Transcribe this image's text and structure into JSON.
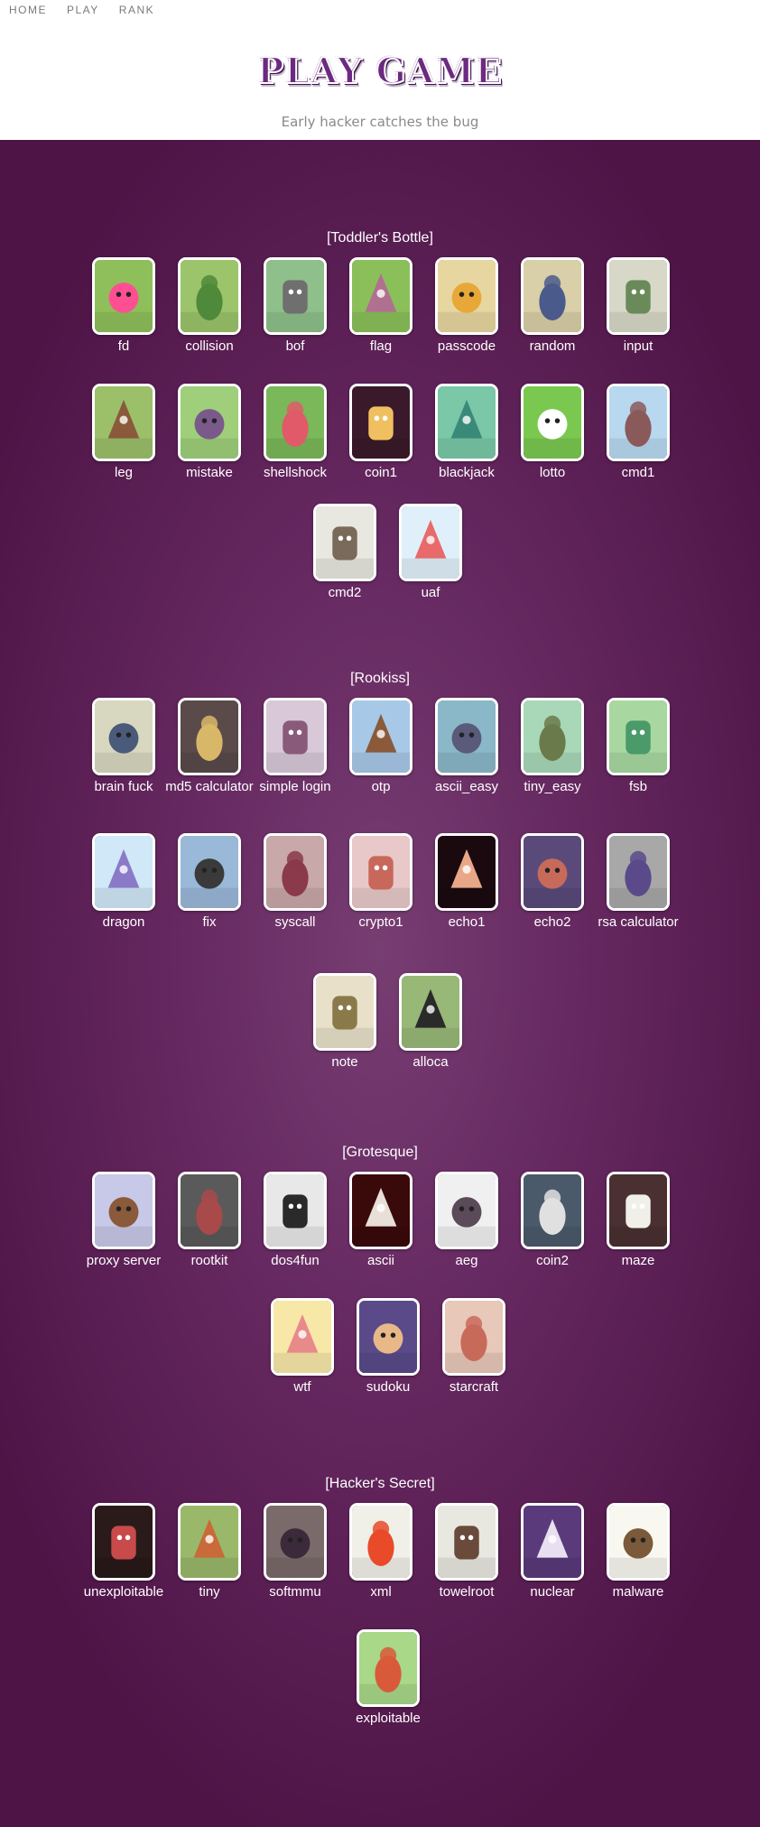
{
  "nav": {
    "items": [
      {
        "label": "HOME"
      },
      {
        "label": "PLAY"
      },
      {
        "label": "RANK"
      }
    ]
  },
  "header": {
    "logo_text": "PLAY GAME",
    "subtitle": "Early hacker catches the bug"
  },
  "categories": [
    {
      "title": "[Toddler's Bottle]",
      "games": [
        {
          "label": "fd",
          "color": "#8fbf5a",
          "accent": "#ff4f93"
        },
        {
          "label": "collision",
          "color": "#9cc46a",
          "accent": "#4f8a3a"
        },
        {
          "label": "bof",
          "color": "#8fbf8a",
          "accent": "#6f6f6f"
        },
        {
          "label": "flag",
          "color": "#8abf5a",
          "accent": "#b07090"
        },
        {
          "label": "passcode",
          "color": "#e8d6a0",
          "accent": "#e8a838"
        },
        {
          "label": "random",
          "color": "#d9cfa8",
          "accent": "#4a5a8a"
        },
        {
          "label": "input",
          "color": "#d8d8c8",
          "accent": "#6a8a5a"
        },
        {
          "label": "leg",
          "color": "#9cbf6a",
          "accent": "#8a5a3a"
        },
        {
          "label": "mistake",
          "color": "#9fcf7a",
          "accent": "#7a5a8a"
        },
        {
          "label": "shellshock",
          "color": "#7ab85a",
          "accent": "#e05a6a"
        },
        {
          "label": "coin1",
          "color": "#3a1a2a",
          "accent": "#f0c060"
        },
        {
          "label": "blackjack",
          "color": "#7ac8a8",
          "accent": "#3a8a7a"
        },
        {
          "label": "lotto",
          "color": "#7ac850",
          "accent": "#ffffff"
        },
        {
          "label": "cmd1",
          "color": "#b8d8f0",
          "accent": "#8a5a5a"
        },
        {
          "label": "cmd2",
          "color": "#e8e8e0",
          "accent": "#7a6a5a"
        },
        {
          "label": "uaf",
          "color": "#e0f0fa",
          "accent": "#e86a6a"
        }
      ]
    },
    {
      "title": "[Rookiss]",
      "games": [
        {
          "label": "brain fuck",
          "color": "#d8d8c0",
          "accent": "#4a5a7a"
        },
        {
          "label": "md5 calculator",
          "color": "#5a4a4a",
          "accent": "#d8b868"
        },
        {
          "label": "simple login",
          "color": "#d8c8d8",
          "accent": "#8a5a7a"
        },
        {
          "label": "otp",
          "color": "#a8c8e8",
          "accent": "#8a5a3a"
        },
        {
          "label": "ascii_easy",
          "color": "#8ab8c8",
          "accent": "#5a5a7a"
        },
        {
          "label": "tiny_easy",
          "color": "#a8d8b8",
          "accent": "#6a7a4a"
        },
        {
          "label": "fsb",
          "color": "#a8d8a0",
          "accent": "#4a9a6a"
        },
        {
          "label": "dragon",
          "color": "#d0e8f8",
          "accent": "#8a7ac8"
        },
        {
          "label": "fix",
          "color": "#9ab8d8",
          "accent": "#3a3a3a"
        },
        {
          "label": "syscall",
          "color": "#c8a8a8",
          "accent": "#8a3a4a"
        },
        {
          "label": "crypto1",
          "color": "#e8c8c8",
          "accent": "#c8685a"
        },
        {
          "label": "echo1",
          "color": "#1a0a10",
          "accent": "#e8a888"
        },
        {
          "label": "echo2",
          "color": "#5a4a7a",
          "accent": "#c86a5a"
        },
        {
          "label": "rsa calculator",
          "color": "#a8a8a8",
          "accent": "#5a4a8a"
        },
        {
          "label": "note",
          "color": "#e8e0c8",
          "accent": "#8a7a4a"
        },
        {
          "label": "alloca",
          "color": "#98b878",
          "accent": "#2a2a2a"
        }
      ]
    },
    {
      "title": "[Grotesque]",
      "games": [
        {
          "label": "proxy server",
          "color": "#c8c8e8",
          "accent": "#8a5a3a"
        },
        {
          "label": "rootkit",
          "color": "#5a5a5a",
          "accent": "#a84a4a"
        },
        {
          "label": "dos4fun",
          "color": "#e8e8e8",
          "accent": "#2a2a2a"
        },
        {
          "label": "ascii",
          "color": "#3a0a0a",
          "accent": "#e8e0d8"
        },
        {
          "label": "aeg",
          "color": "#f0f0f0",
          "accent": "#5a4a5a"
        },
        {
          "label": "coin2",
          "color": "#4a5a6a",
          "accent": "#e0e0e0"
        },
        {
          "label": "maze",
          "color": "#4a3030",
          "accent": "#f0f0e8"
        },
        {
          "label": "wtf",
          "color": "#f8e8a8",
          "accent": "#e88a8a"
        },
        {
          "label": "sudoku",
          "color": "#5a4a8a",
          "accent": "#e8b888"
        },
        {
          "label": "starcraft",
          "color": "#e8c8b8",
          "accent": "#c86a5a"
        }
      ]
    },
    {
      "title": "[Hacker's Secret]",
      "games": [
        {
          "label": "unexploitable",
          "color": "#2a1a1a",
          "accent": "#c84a4a"
        },
        {
          "label": "tiny",
          "color": "#9ab86a",
          "accent": "#c86a3a"
        },
        {
          "label": "softmmu",
          "color": "#7a6a6a",
          "accent": "#3a2a3a"
        },
        {
          "label": "xml",
          "color": "#f0f0e8",
          "accent": "#e84a2a"
        },
        {
          "label": "towelroot",
          "color": "#e8e8e0",
          "accent": "#6a4a3a"
        },
        {
          "label": "nuclear",
          "color": "#5a3a7a",
          "accent": "#e8e0f0"
        },
        {
          "label": "malware",
          "color": "#f8f8f0",
          "accent": "#7a5a3a"
        },
        {
          "label": "exploitable",
          "color": "#a8d888",
          "accent": "#d85a3a"
        }
      ]
    }
  ]
}
